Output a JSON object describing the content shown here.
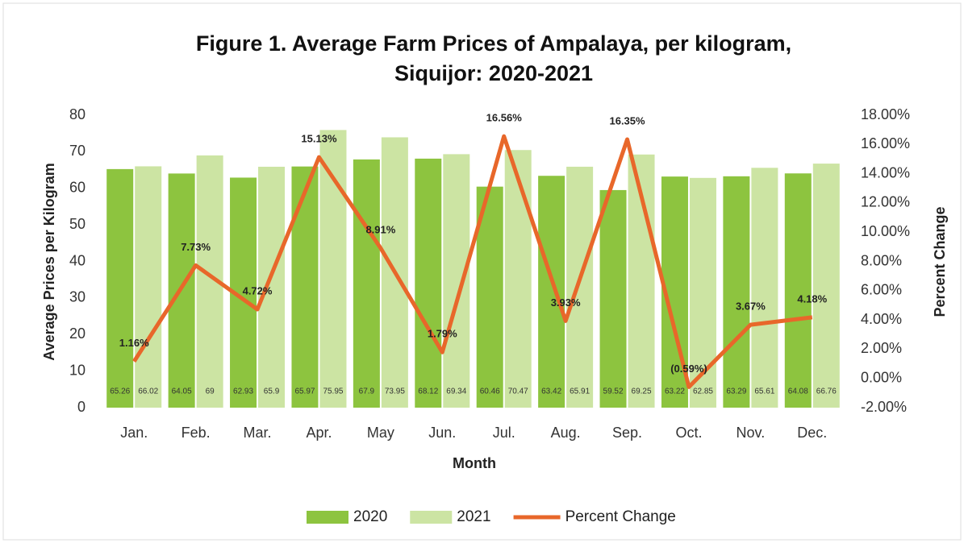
{
  "chart_data": {
    "type": "bar",
    "title": [
      "Figure 1. Average Farm Prices of Ampalaya,  per kilogram,",
      "Siquijor: 2020-2021"
    ],
    "x_label": "Month",
    "y_label": "Average Prices per Kilogram",
    "y2_label": "Percent Change",
    "categories": [
      "Jan.",
      "Feb.",
      "Mar.",
      "Apr.",
      "May",
      "Jun.",
      "Jul.",
      "Aug.",
      "Sep.",
      "Oct.",
      "Nov.",
      "Dec."
    ],
    "series": [
      {
        "name": "2020",
        "color": "#8dc43f",
        "values": [
          65.26,
          64.05,
          62.93,
          65.97,
          67.9,
          68.12,
          60.46,
          63.42,
          59.52,
          63.22,
          63.29,
          64.08
        ]
      },
      {
        "name": "2021",
        "color": "#cce4a3",
        "values": [
          66.02,
          69,
          65.9,
          75.95,
          73.95,
          69.34,
          70.47,
          65.91,
          69.25,
          62.85,
          65.61,
          66.76
        ]
      },
      {
        "name": "Percent Change",
        "type": "line",
        "axis": "y2",
        "color": "#e8672a",
        "values": [
          1.16,
          7.73,
          4.72,
          15.13,
          8.91,
          1.79,
          16.56,
          3.93,
          16.35,
          -0.59,
          3.67,
          4.18
        ],
        "value_labels": [
          "1.16%",
          "7.73%",
          "4.72%",
          "15.13%",
          "8.91%",
          "1.79%",
          "16.56%",
          "3.93%",
          "16.35%",
          "(0.59%)",
          "3.67%",
          "4.18%"
        ]
      }
    ],
    "ylim": [
      0,
      80
    ],
    "yticks": [
      0,
      10,
      20,
      30,
      40,
      50,
      60,
      70,
      80
    ],
    "y2lim": [
      -2,
      18
    ],
    "y2ticks": [
      {
        "value": -2,
        "label": "-2.00%"
      },
      {
        "value": 0,
        "label": "0.00%"
      },
      {
        "value": 2,
        "label": "2.00%"
      },
      {
        "value": 4,
        "label": "4.00%"
      },
      {
        "value": 6,
        "label": "6.00%"
      },
      {
        "value": 8,
        "label": "8.00%"
      },
      {
        "value": 10,
        "label": "10.00%"
      },
      {
        "value": 12,
        "label": "12.00%"
      },
      {
        "value": 14,
        "label": "14.00%"
      },
      {
        "value": 16,
        "label": "16.00%"
      },
      {
        "value": 18,
        "label": "18.00%"
      }
    ],
    "legend": "bottom"
  }
}
